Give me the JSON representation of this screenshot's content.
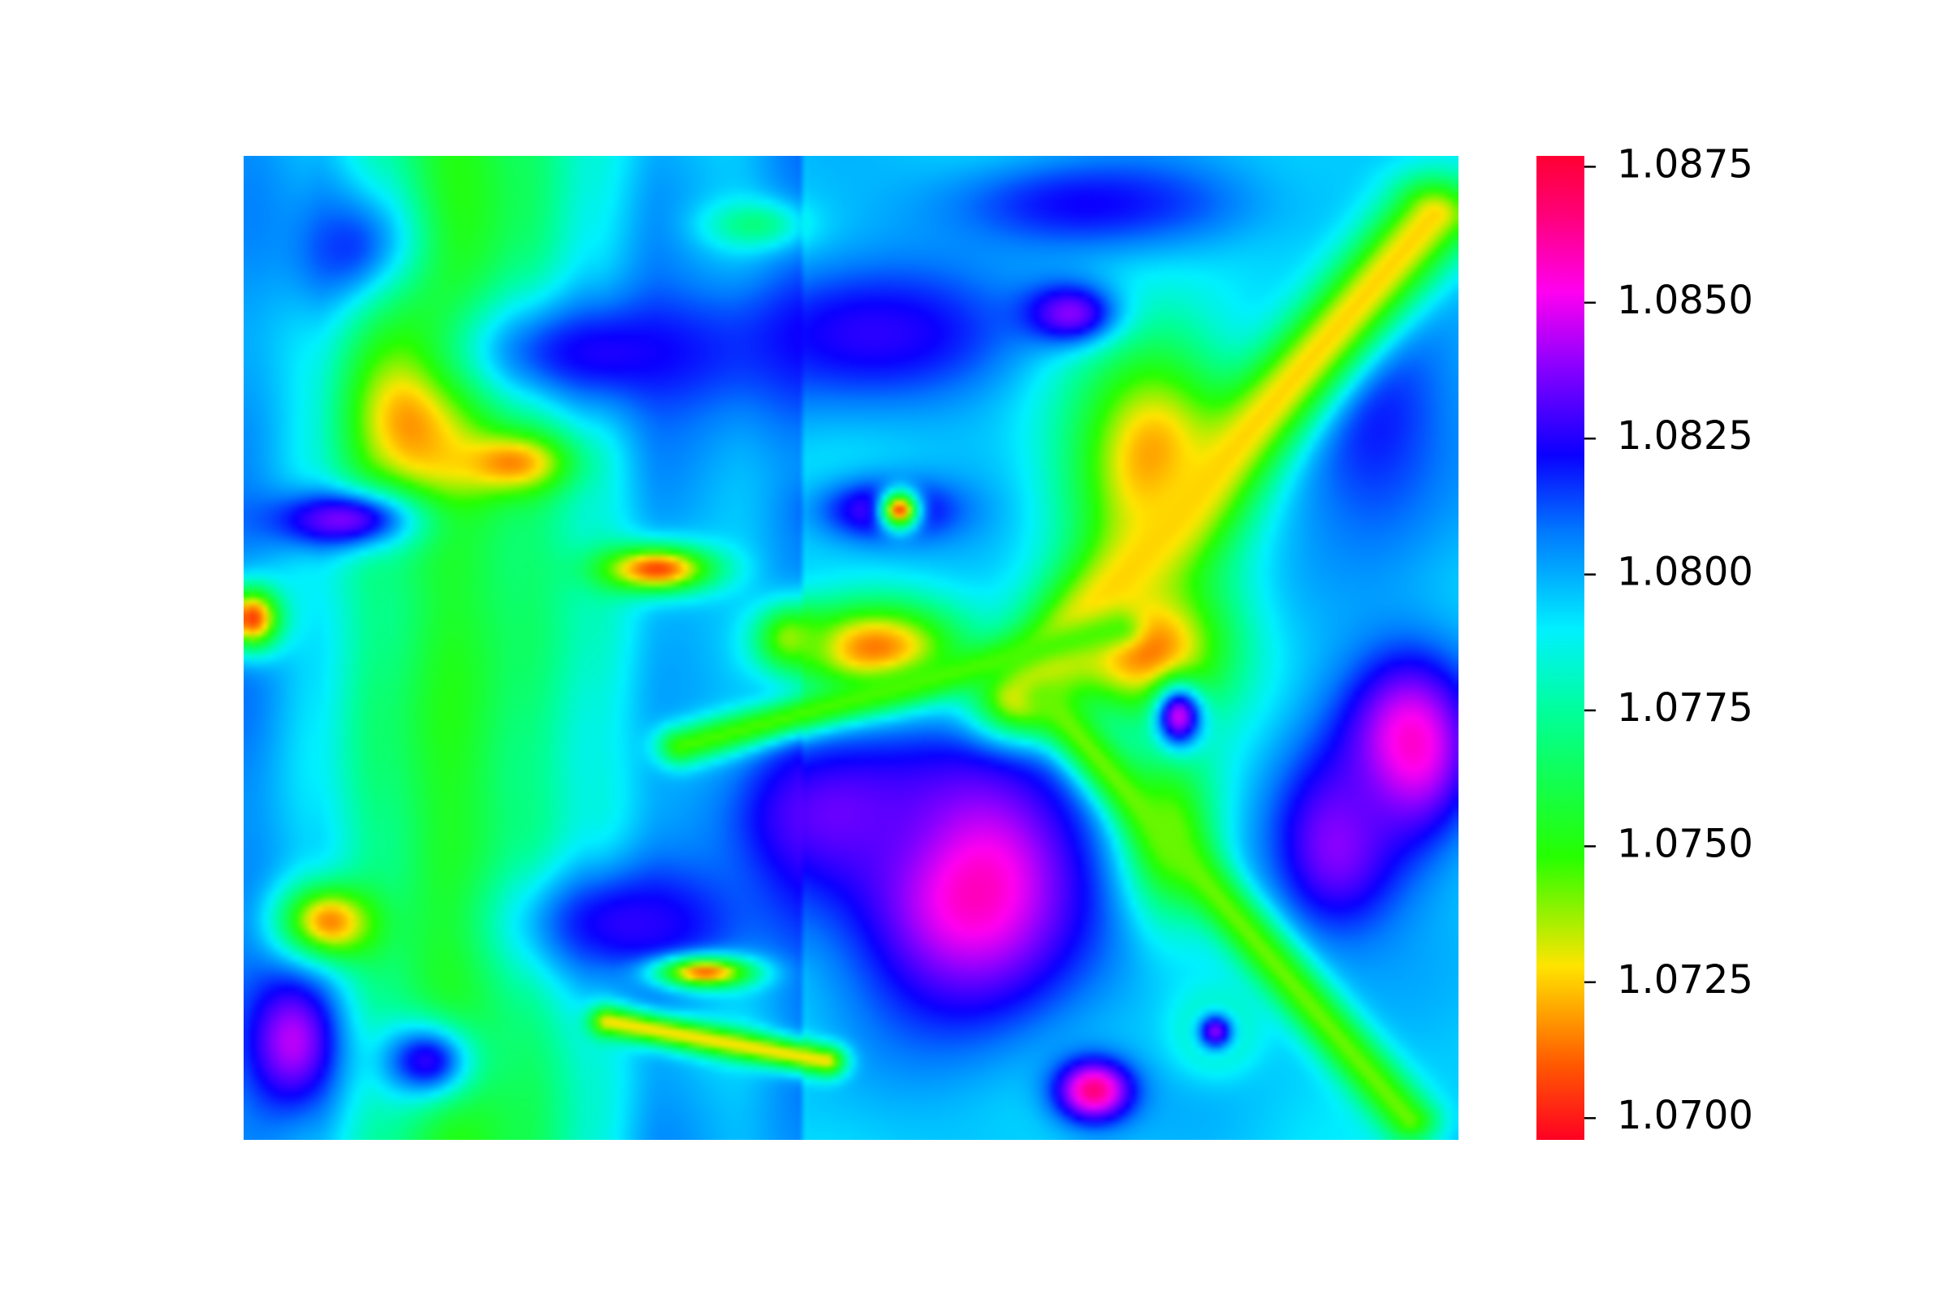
{
  "chart_data": {
    "type": "heatmap",
    "title": "",
    "xlabel": "",
    "ylabel": "",
    "axes_visible": false,
    "grid": false,
    "colormap": "gist_rainbow_r",
    "colorbar": {
      "position": "right",
      "vmin": 1.0696,
      "vmax": 1.0877,
      "ticks": [
        1.07,
        1.0725,
        1.075,
        1.0775,
        1.08,
        1.0825,
        1.085,
        1.0875
      ],
      "tick_labels": [
        "1.0700",
        "1.0725",
        "1.0750",
        "1.0775",
        "1.0800",
        "1.0825",
        "1.0850",
        "1.0875"
      ]
    },
    "colormap_stops": [
      {
        "value": 1.0696,
        "color": "#ff0022"
      },
      {
        "value": 1.071,
        "color": "#ff5a00"
      },
      {
        "value": 1.0728,
        "color": "#ffe400"
      },
      {
        "value": 1.0748,
        "color": "#26ff00"
      },
      {
        "value": 1.0775,
        "color": "#00ff9c"
      },
      {
        "value": 1.079,
        "color": "#00f0ff"
      },
      {
        "value": 1.0808,
        "color": "#0078ff"
      },
      {
        "value": 1.0822,
        "color": "#0a00ff"
      },
      {
        "value": 1.0838,
        "color": "#8800ff"
      },
      {
        "value": 1.0852,
        "color": "#ff00f0"
      },
      {
        "value": 1.0866,
        "color": "#ff007a"
      },
      {
        "value": 1.0877,
        "color": "#ff0033"
      }
    ],
    "grid_shape": [
      160,
      200
    ],
    "background_value": 1.0795,
    "stripe_values": [
      1.0804,
      1.0792,
      1.0771,
      1.0753,
      1.0766,
      1.0784,
      1.0801,
      1.0796,
      1.0806
    ],
    "features": [
      {
        "kind": "blob",
        "cx": 0.09,
        "cy": 0.1,
        "rx": 0.07,
        "ry": 0.09,
        "value": 1.082
      },
      {
        "kind": "blob",
        "cx": 0.14,
        "cy": 0.25,
        "rx": 0.07,
        "ry": 0.13,
        "value": 1.0708
      },
      {
        "kind": "blob",
        "cx": 0.22,
        "cy": 0.31,
        "rx": 0.06,
        "ry": 0.04,
        "value": 1.0712
      },
      {
        "kind": "blob",
        "cx": 0.3,
        "cy": 0.2,
        "rx": 0.17,
        "ry": 0.08,
        "value": 1.0824
      },
      {
        "kind": "blob",
        "cx": 0.52,
        "cy": 0.18,
        "rx": 0.16,
        "ry": 0.09,
        "value": 1.0826
      },
      {
        "kind": "blob",
        "cx": 0.7,
        "cy": 0.05,
        "rx": 0.16,
        "ry": 0.06,
        "value": 1.0823
      },
      {
        "kind": "blob",
        "cx": 0.75,
        "cy": 0.31,
        "rx": 0.09,
        "ry": 0.16,
        "value": 1.0718
      },
      {
        "kind": "blob",
        "cx": 0.74,
        "cy": 0.5,
        "rx": 0.09,
        "ry": 0.09,
        "value": 1.071
      },
      {
        "kind": "blob",
        "cx": 0.76,
        "cy": 0.69,
        "rx": 0.05,
        "ry": 0.11,
        "value": 1.0735
      },
      {
        "kind": "blob",
        "cx": 0.93,
        "cy": 0.26,
        "rx": 0.09,
        "ry": 0.19,
        "value": 1.082
      },
      {
        "kind": "blob",
        "cx": 0.96,
        "cy": 0.6,
        "rx": 0.07,
        "ry": 0.12,
        "value": 1.0858
      },
      {
        "kind": "blob",
        "cx": 0.9,
        "cy": 0.7,
        "rx": 0.07,
        "ry": 0.12,
        "value": 1.0838
      },
      {
        "kind": "blob",
        "cx": 0.6,
        "cy": 0.74,
        "rx": 0.12,
        "ry": 0.17,
        "value": 1.0861
      },
      {
        "kind": "blob",
        "cx": 0.49,
        "cy": 0.67,
        "rx": 0.12,
        "ry": 0.1,
        "value": 1.0834
      },
      {
        "kind": "blob",
        "cx": 0.32,
        "cy": 0.78,
        "rx": 0.13,
        "ry": 0.08,
        "value": 1.0826
      },
      {
        "kind": "blob",
        "cx": 0.34,
        "cy": 0.42,
        "rx": 0.06,
        "ry": 0.03,
        "value": 1.0707
      },
      {
        "kind": "blob",
        "cx": 0.52,
        "cy": 0.5,
        "rx": 0.09,
        "ry": 0.06,
        "value": 1.0714
      },
      {
        "kind": "blob",
        "cx": 0.53,
        "cy": 0.36,
        "rx": 0.07,
        "ry": 0.04,
        "value": 1.0836
      },
      {
        "kind": "blob",
        "cx": 0.54,
        "cy": 0.36,
        "rx": 0.02,
        "ry": 0.025,
        "value": 1.0708
      },
      {
        "kind": "blob",
        "cx": 0.45,
        "cy": 0.49,
        "rx": 0.035,
        "ry": 0.04,
        "value": 1.0738
      },
      {
        "kind": "blob",
        "cx": 0.07,
        "cy": 0.78,
        "rx": 0.05,
        "ry": 0.05,
        "value": 1.0712
      },
      {
        "kind": "blob",
        "cx": 0.04,
        "cy": 0.9,
        "rx": 0.05,
        "ry": 0.09,
        "value": 1.0844
      },
      {
        "kind": "blob",
        "cx": 0.15,
        "cy": 0.92,
        "rx": 0.05,
        "ry": 0.05,
        "value": 1.0826
      },
      {
        "kind": "blob",
        "cx": 0.38,
        "cy": 0.83,
        "rx": 0.05,
        "ry": 0.02,
        "value": 1.0712
      },
      {
        "kind": "blob",
        "cx": 0.7,
        "cy": 0.95,
        "rx": 0.04,
        "ry": 0.04,
        "value": 1.0866
      },
      {
        "kind": "blob",
        "cx": 0.8,
        "cy": 0.89,
        "rx": 0.04,
        "ry": 0.05,
        "value": 1.0768
      },
      {
        "kind": "blob",
        "cx": 0.8,
        "cy": 0.89,
        "rx": 0.02,
        "ry": 0.025,
        "value": 1.0838
      },
      {
        "kind": "blob",
        "cx": 0.77,
        "cy": 0.57,
        "rx": 0.025,
        "ry": 0.04,
        "value": 1.0846
      },
      {
        "kind": "blob",
        "cx": 0.007,
        "cy": 0.47,
        "rx": 0.03,
        "ry": 0.04,
        "value": 1.0706
      },
      {
        "kind": "blob",
        "cx": 0.08,
        "cy": 0.37,
        "rx": 0.08,
        "ry": 0.04,
        "value": 1.0836
      },
      {
        "kind": "blob",
        "cx": 0.68,
        "cy": 0.16,
        "rx": 0.05,
        "ry": 0.04,
        "value": 1.0838
      },
      {
        "kind": "blob",
        "cx": 0.42,
        "cy": 0.07,
        "rx": 0.05,
        "ry": 0.03,
        "value": 1.077
      },
      {
        "kind": "ridge",
        "x0": 0.64,
        "y0": 0.55,
        "x1": 0.98,
        "y1": 0.06,
        "width": 0.05,
        "value": 1.0726
      },
      {
        "kind": "ridge",
        "x0": 0.36,
        "y0": 0.6,
        "x1": 0.72,
        "y1": 0.48,
        "width": 0.025,
        "value": 1.0745
      },
      {
        "kind": "ridge",
        "x0": 0.66,
        "y0": 0.55,
        "x1": 0.96,
        "y1": 0.98,
        "width": 0.03,
        "value": 1.0742
      },
      {
        "kind": "ridge",
        "x0": 0.3,
        "y0": 0.88,
        "x1": 0.48,
        "y1": 0.92,
        "width": 0.02,
        "value": 1.0728
      }
    ]
  }
}
